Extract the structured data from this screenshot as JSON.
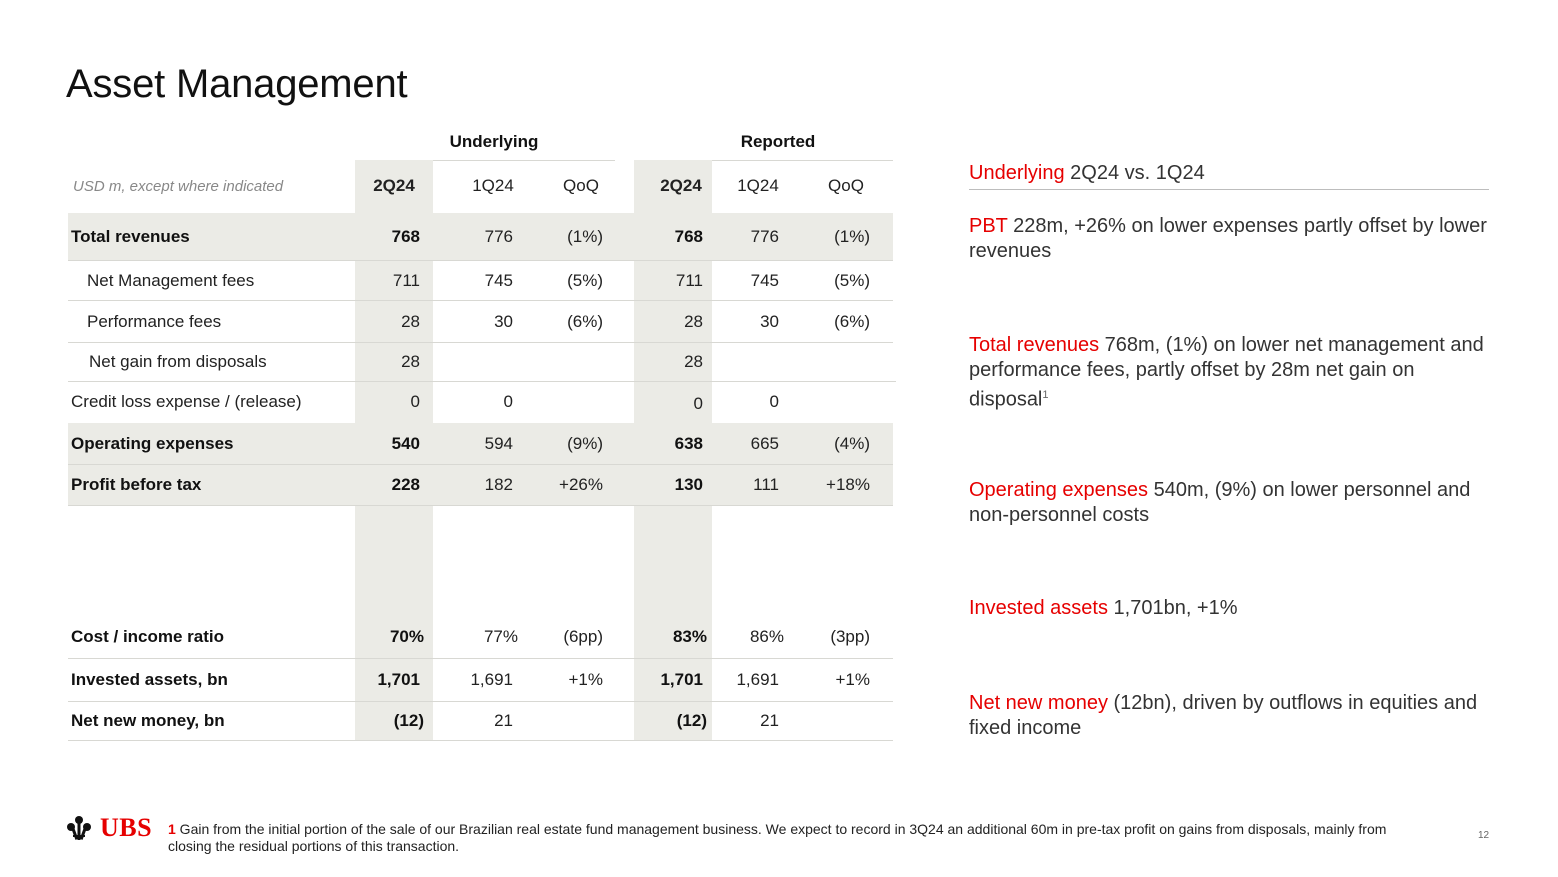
{
  "title": "Asset Management",
  "table": {
    "group_underlying": "Underlying",
    "group_reported": "Reported",
    "unit_label": "USD m, except where indicated",
    "columns": [
      "2Q24",
      "1Q24",
      "QoQ",
      "2Q24",
      "1Q24",
      "QoQ"
    ],
    "rows": {
      "total_revenues": {
        "label": "Total revenues",
        "values": [
          "768",
          "776",
          "(1%)",
          "768",
          "776",
          "(1%)"
        ]
      },
      "net_mgmt_fees": {
        "label": "Net Management fees",
        "values": [
          "711",
          "745",
          "(5%)",
          "711",
          "745",
          "(5%)"
        ]
      },
      "performance_fees": {
        "label": "Performance fees",
        "values": [
          "28",
          "30",
          "(6%)",
          "28",
          "30",
          "(6%)"
        ]
      },
      "net_gain_disposals": {
        "label": "Net gain from disposals",
        "values": [
          "28",
          "",
          "",
          "28",
          "",
          ""
        ]
      },
      "credit_loss": {
        "label": "Credit loss expense / (release)",
        "values": [
          "0",
          "0",
          "",
          "0",
          "0",
          ""
        ]
      },
      "operating_expenses": {
        "label": "Operating expenses",
        "values": [
          "540",
          "594",
          "(9%)",
          "638",
          "665",
          "(4%)"
        ]
      },
      "profit_before_tax": {
        "label": "Profit before tax",
        "values": [
          "228",
          "182",
          "+26%",
          "130",
          "111",
          "+18%"
        ]
      },
      "cost_income_ratio": {
        "label": "Cost / income ratio",
        "values": [
          "70%",
          "77%",
          "(6pp)",
          "83%",
          "86%",
          "(3pp)"
        ]
      },
      "invested_assets": {
        "label": "Invested assets, bn",
        "values": [
          "1,701",
          "1,691",
          "+1%",
          "1,701",
          "1,691",
          "+1%"
        ]
      },
      "net_new_money": {
        "label": "Net new money, bn",
        "values": [
          "(12)",
          "21",
          "",
          "(12)",
          "21",
          ""
        ]
      }
    }
  },
  "commentary": {
    "heading_red": "Underlying",
    "heading_rest": " 2Q24 vs. 1Q24",
    "items": [
      {
        "red": "PBT",
        "text": " 228m, +26% on lower expenses partly offset by lower revenues"
      },
      {
        "red": "Total revenues",
        "text": " 768m, (1%) on lower net management and performance fees, partly offset by 28m net gain on disposal",
        "sup": "1"
      },
      {
        "red": "Operating expenses",
        "text": " 540m, (9%) on lower personnel and non-personnel costs"
      },
      {
        "red": "Invested assets",
        "text": " 1,701bn, +1%"
      },
      {
        "red": "Net new money",
        "text": " (12bn), driven by outflows in equities and fixed income"
      }
    ]
  },
  "footer": {
    "logo_text": "UBS",
    "footnote_num": "1",
    "footnote_text": " Gain from the initial portion of the sale of our Brazilian real estate fund management business. We expect to record in 3Q24 an additional 60m in pre-tax profit on gains from disposals, mainly from closing the residual portions of this transaction.",
    "page_number": "12"
  },
  "colors": {
    "accent_red": "#e60000",
    "shade": "#ebebe6"
  }
}
